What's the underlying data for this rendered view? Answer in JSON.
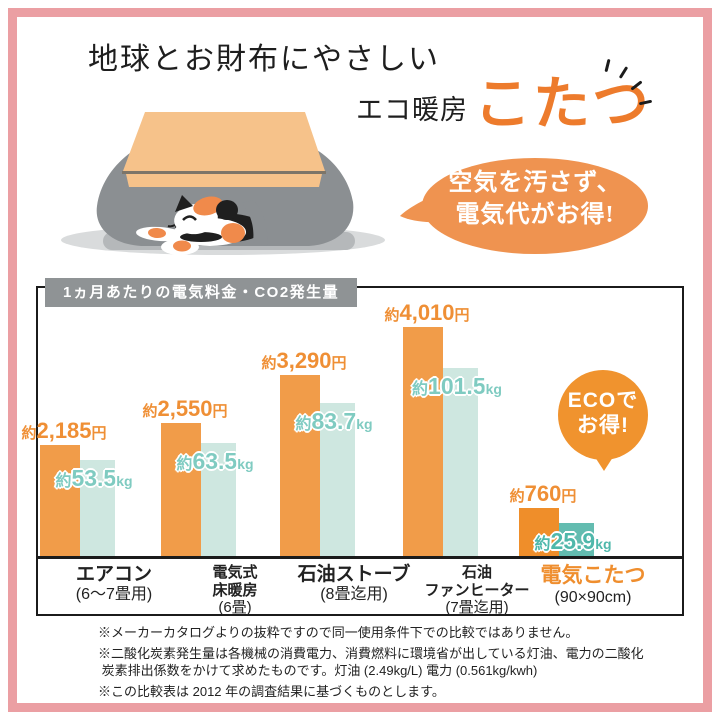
{
  "title": "地球とお財布にやさしい",
  "subtitle": {
    "prefix": "エコ暖房",
    "highlight": "こたつ"
  },
  "speech_bubble": {
    "line1": "空気を汚さず、",
    "line2": "電気代がお得!"
  },
  "eco_badge": {
    "line1": "ECOで",
    "line2": "お得!"
  },
  "chart_data": {
    "type": "bar",
    "title": "1ヵ月あたりの電気料金・CO2発生量",
    "grid": false,
    "legend": "none",
    "categories": [
      {
        "lines": [
          "エアコン",
          "(6〜7畳用)"
        ],
        "highlight": false
      },
      {
        "lines": [
          "電気式",
          "床暖房",
          "(6畳)"
        ],
        "highlight": false
      },
      {
        "lines": [
          "石油ストーブ",
          "(8畳迄用)"
        ],
        "highlight": false
      },
      {
        "lines": [
          "石油",
          "ファンヒーター",
          "(7畳迄用)"
        ],
        "highlight": false
      },
      {
        "lines": [
          "電気こたつ",
          "(90×90cm)"
        ],
        "highlight": true
      }
    ],
    "series": [
      {
        "name": "電気料金(1ヵ月あたり)",
        "unit": "円",
        "values": [
          2185,
          2550,
          3290,
          4010,
          760
        ],
        "labels": [
          "約2,185円",
          "約2,550円",
          "約3,290円",
          "約4,010円",
          "約760円"
        ],
        "color": "#F19C49",
        "highlight_color": "#EF8E2A"
      },
      {
        "name": "CO2発生量(1ヵ月あたり)",
        "unit": "kg",
        "values": [
          53.5,
          63.5,
          83.7,
          101.5,
          25.9
        ],
        "labels": [
          "約53.5kg",
          "約63.5kg",
          "約83.7kg",
          "約101.5kg",
          "約25.9kg"
        ],
        "color": "#CEE7E0",
        "highlight_color": "#63BCB0",
        "label_color": "#7FCBC1",
        "label_highlight_color": "#4FB8AB"
      }
    ],
    "layout_hints": {
      "baseline_y": 556,
      "group_centers": [
        114,
        235,
        354,
        477,
        593
      ],
      "bar_heights_price": [
        111,
        133,
        181,
        229,
        48
      ],
      "bar_heights_co2": [
        96,
        113,
        153,
        188,
        33
      ],
      "price_bar_width": 40,
      "co2_bar_width": 43,
      "overlap": 8
    }
  },
  "footnotes": [
    "※メーカーカタログよりの抜粋ですので同一使用条件下での比較ではありません。",
    "※二酸化炭素発生量は各機械の消費電力、消費燃料に環境省が出している灯油、電力の二酸化\n 炭素排出係数をかけて求めたものです。灯油 (2.49kg/L) 電力 (0.561kg/kwh)",
    "※この比較表は 2012 年の調査結果に基づくものとします。"
  ],
  "colors": {
    "accent_orange": "#EF8F35",
    "bar_orange": "#F19C49",
    "kotatsu_bar_orange": "#EF8E2A",
    "pale_teal": "#CEE7E0",
    "deep_teal": "#63BCB0",
    "teal_label": "#7FCBC1",
    "pink_frame": "#EB9FA3",
    "gray_header": "#8F9395",
    "bubble_orange": "#EF9350",
    "badge_orange": "#F0932E",
    "blanket_gray": "#8B8F92",
    "tabletop_orange": "#F6C28A"
  }
}
